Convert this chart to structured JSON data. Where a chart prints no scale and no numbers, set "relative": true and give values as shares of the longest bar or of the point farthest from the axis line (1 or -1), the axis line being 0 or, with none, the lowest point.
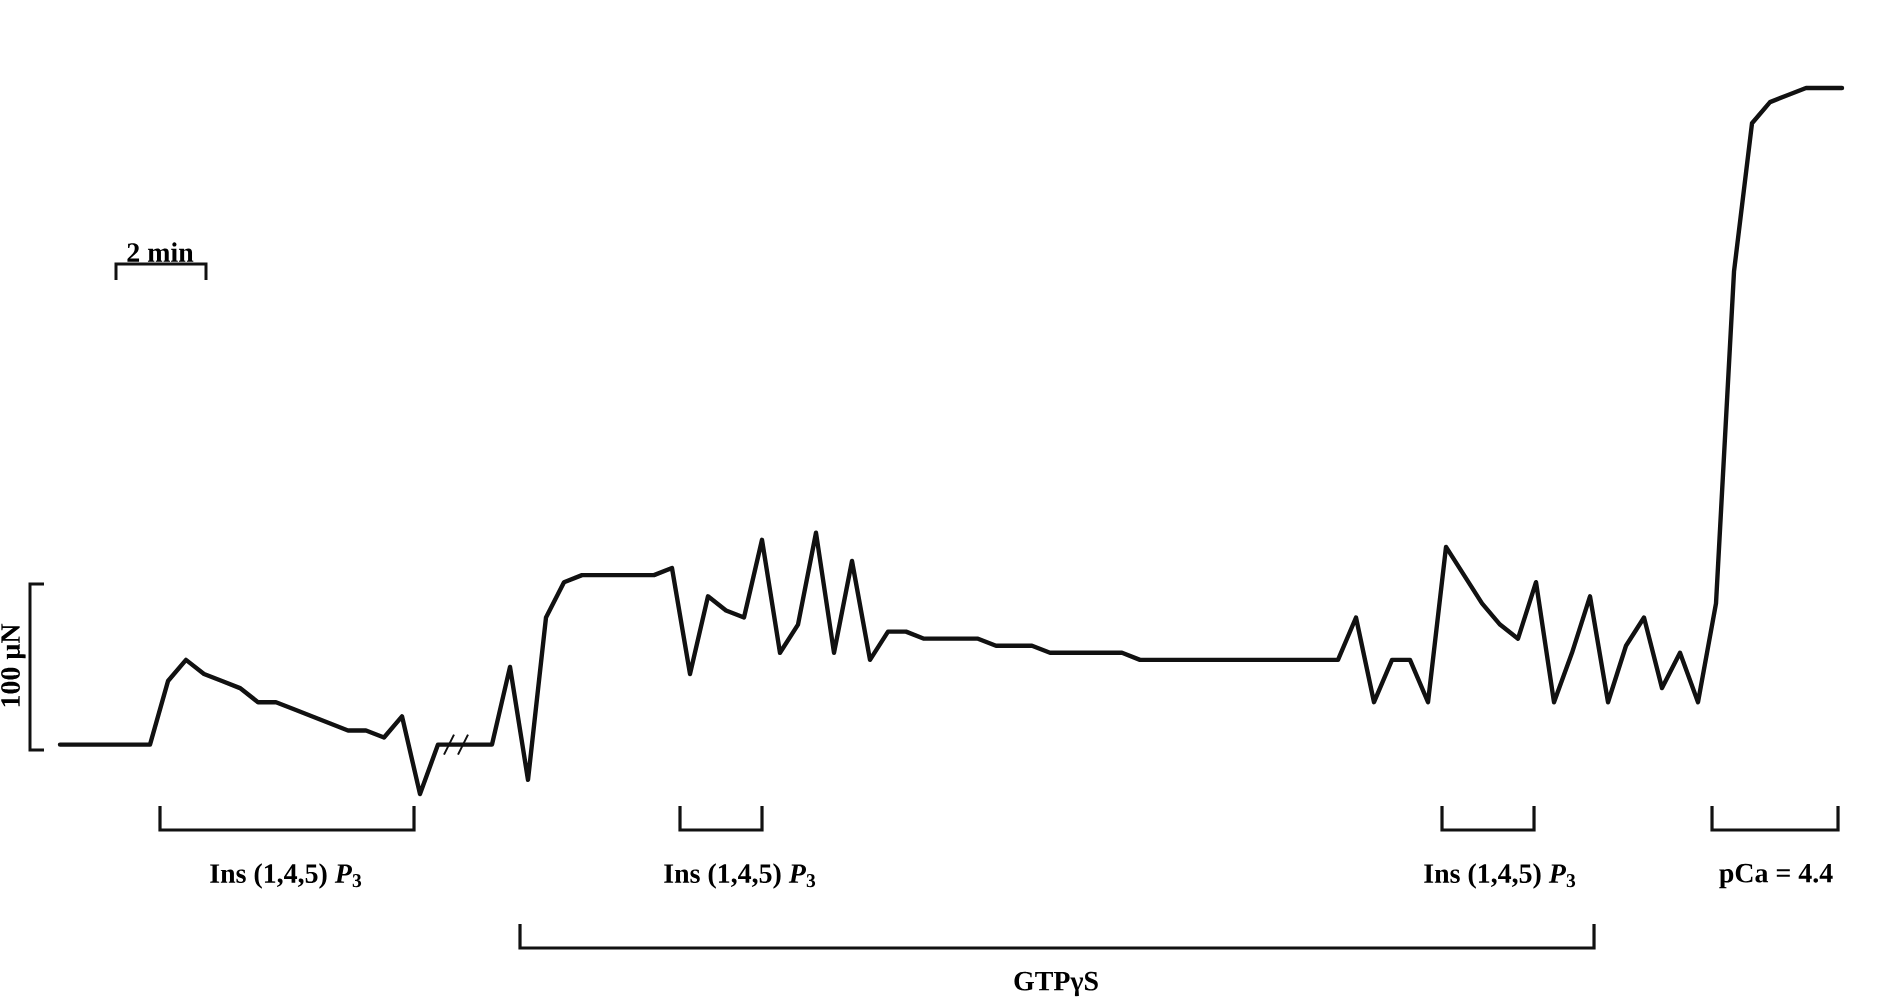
{
  "chart_data": {
    "type": "line",
    "relative": true,
    "color": "#111111",
    "categories": [
      null,
      null,
      null,
      null,
      null,
      null,
      null,
      null,
      null,
      null,
      null,
      null,
      null,
      null,
      null,
      null,
      null,
      null,
      null,
      null,
      null,
      null,
      null,
      null,
      null,
      null,
      null,
      null,
      null,
      null,
      null,
      null,
      null,
      null,
      null,
      null,
      null,
      null,
      null,
      null,
      null,
      null,
      null,
      null,
      null,
      null,
      null,
      null,
      null,
      null,
      null,
      null,
      null,
      null,
      null,
      null,
      null,
      null,
      null,
      null,
      null,
      null,
      null,
      null,
      null,
      null,
      null,
      null,
      null,
      null,
      null,
      null,
      null,
      null,
      null,
      null,
      null,
      null,
      null,
      null,
      null,
      null,
      null,
      null,
      null,
      null,
      null,
      null,
      null,
      null,
      null,
      null,
      null,
      null,
      null,
      null,
      null,
      null,
      null,
      null
    ],
    "values": [
      0.07,
      0.07,
      0.07,
      0.07,
      0.07,
      0.07,
      0.16,
      0.19,
      0.17,
      0.16,
      0.15,
      0.13,
      0.13,
      0.12,
      0.11,
      0.1,
      0.09,
      0.09,
      0.08,
      0.11,
      0.0,
      0.07,
      0.07,
      0.07,
      0.07,
      0.18,
      0.02,
      0.25,
      0.3,
      0.31,
      0.31,
      0.31,
      0.31,
      0.31,
      0.32,
      0.17,
      0.28,
      0.26,
      0.25,
      0.36,
      0.2,
      0.24,
      0.37,
      0.2,
      0.33,
      0.19,
      0.23,
      0.23,
      0.22,
      0.22,
      0.22,
      0.22,
      0.21,
      0.21,
      0.21,
      0.2,
      0.2,
      0.2,
      0.2,
      0.2,
      0.19,
      0.19,
      0.19,
      0.19,
      0.19,
      0.19,
      0.19,
      0.19,
      0.19,
      0.19,
      0.19,
      0.19,
      0.25,
      0.13,
      0.19,
      0.19,
      0.13,
      0.35,
      0.31,
      0.27,
      0.24,
      0.22,
      0.3,
      0.13,
      0.2,
      0.28,
      0.13,
      0.21,
      0.25,
      0.15,
      0.2,
      0.13,
      0.27,
      0.74,
      0.95,
      0.98,
      0.99,
      1.0,
      1.0,
      1.0
    ],
    "annotations": [
      "2 min",
      "100 µN",
      "Ins (1,4,5) *P*$_{3}$",
      "Ins (1,4,5) *P*$_{3}$",
      "Ins (1,4,5) *P*$_{3}$",
      "pCa = 4.4",
      "GTPγS"
    ]
  }
}
